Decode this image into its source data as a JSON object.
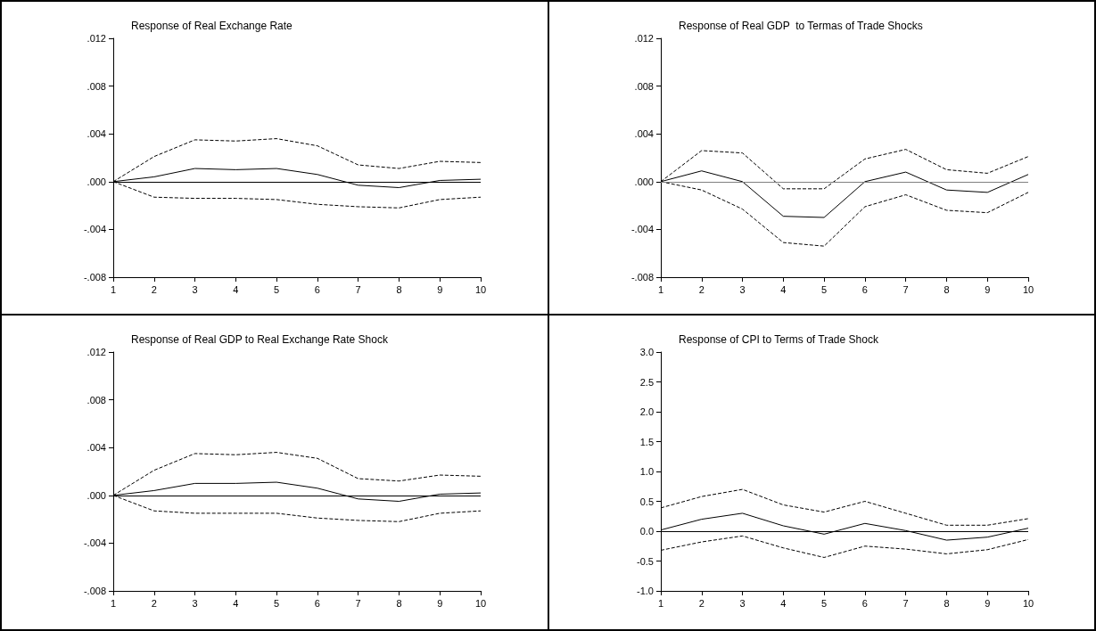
{
  "chart_data": [
    {
      "type": "line",
      "title": "Response of Real Exchange Rate",
      "x": [
        1,
        2,
        3,
        4,
        5,
        6,
        7,
        8,
        9,
        10
      ],
      "xlim": [
        1,
        10
      ],
      "xticks": [
        1,
        2,
        3,
        4,
        5,
        6,
        7,
        8,
        9,
        10
      ],
      "ylim": [
        -0.008,
        0.012
      ],
      "yticks": [
        {
          "value": -0.008,
          "label": "-.008"
        },
        {
          "value": -0.004,
          "label": "-.004"
        },
        {
          "value": 0,
          "label": ".000"
        },
        {
          "value": 0.004,
          "label": ".004"
        },
        {
          "value": 0.008,
          "label": ".008"
        },
        {
          "value": 0.012,
          "label": ".012"
        }
      ],
      "grid": false,
      "marker": "none",
      "ref_lines": [
        {
          "axis": "y",
          "value": 0,
          "color": "#000000",
          "line_style": "solid"
        }
      ],
      "series": [
        {
          "color": "#000000",
          "line_style": "solid",
          "values": [
            0,
            0.0004,
            0.0011,
            0.001,
            0.0011,
            0.0006,
            -0.0003,
            -0.0005,
            0.0001,
            0.0002
          ]
        },
        {
          "color": "#000000",
          "line_style": "dashed",
          "values": [
            0,
            0.0021,
            0.0035,
            0.0034,
            0.0036,
            0.003,
            0.0014,
            0.0011,
            0.0017,
            0.0016
          ]
        },
        {
          "color": "#000000",
          "line_style": "dashed",
          "values": [
            0,
            -0.0013,
            -0.0014,
            -0.0014,
            -0.0015,
            -0.0019,
            -0.0021,
            -0.0022,
            -0.0015,
            -0.0013
          ]
        }
      ]
    },
    {
      "type": "line",
      "title": "Response of Real GDP  to Termas of Trade Shocks",
      "x": [
        1,
        2,
        3,
        4,
        5,
        6,
        7,
        8,
        9,
        10
      ],
      "xlim": [
        1,
        10
      ],
      "xticks": [
        1,
        2,
        3,
        4,
        5,
        6,
        7,
        8,
        9,
        10
      ],
      "ylim": [
        -0.008,
        0.012
      ],
      "yticks": [
        {
          "value": -0.008,
          "label": "-.008"
        },
        {
          "value": -0.004,
          "label": "-.004"
        },
        {
          "value": 0,
          "label": ".000"
        },
        {
          "value": 0.004,
          "label": ".004"
        },
        {
          "value": 0.008,
          "label": ".008"
        },
        {
          "value": 0.012,
          "label": ".012"
        }
      ],
      "grid": false,
      "marker": "none",
      "ref_lines": [
        {
          "axis": "y",
          "value": 0,
          "color": "#808080",
          "line_style": "solid"
        }
      ],
      "series": [
        {
          "color": "#000000",
          "line_style": "solid",
          "values": [
            0,
            0.0009,
            0,
            -0.0029,
            -0.003,
            0,
            0.0008,
            -0.0007,
            -0.0009,
            0.0006
          ]
        },
        {
          "color": "#000000",
          "line_style": "dashed",
          "values": [
            0,
            0.0026,
            0.0024,
            -0.0006,
            -0.0006,
            0.0019,
            0.0027,
            0.001,
            0.0007,
            0.0021
          ]
        },
        {
          "color": "#000000",
          "line_style": "dashed",
          "values": [
            0,
            -0.0007,
            -0.0023,
            -0.0051,
            -0.0054,
            -0.0021,
            -0.0011,
            -0.0024,
            -0.0026,
            -0.0009
          ]
        }
      ]
    },
    {
      "type": "line",
      "title": "Response of Real GDP to Real Exchange Rate Shock",
      "x": [
        1,
        2,
        3,
        4,
        5,
        6,
        7,
        8,
        9,
        10
      ],
      "xlim": [
        1,
        10
      ],
      "xticks": [
        1,
        2,
        3,
        4,
        5,
        6,
        7,
        8,
        9,
        10
      ],
      "ylim": [
        -0.008,
        0.012
      ],
      "yticks": [
        {
          "value": -0.008,
          "label": "-.008"
        },
        {
          "value": -0.004,
          "label": "-.004"
        },
        {
          "value": 0,
          "label": ".000"
        },
        {
          "value": 0.004,
          "label": ".004"
        },
        {
          "value": 0.008,
          "label": ".008"
        },
        {
          "value": 0.012,
          "label": ".012"
        }
      ],
      "grid": false,
      "marker": "none",
      "ref_lines": [
        {
          "axis": "y",
          "value": 0,
          "color": "#000000",
          "line_style": "solid"
        }
      ],
      "series": [
        {
          "color": "#000000",
          "line_style": "solid",
          "values": [
            0,
            0.0004,
            0.001,
            0.001,
            0.0011,
            0.0006,
            -0.0003,
            -0.0005,
            0.0001,
            0.0002
          ]
        },
        {
          "color": "#000000",
          "line_style": "dashed",
          "values": [
            0,
            0.0021,
            0.0035,
            0.0034,
            0.0036,
            0.0031,
            0.0014,
            0.0012,
            0.0017,
            0.0016
          ]
        },
        {
          "color": "#000000",
          "line_style": "dashed",
          "values": [
            0,
            -0.0013,
            -0.0015,
            -0.0015,
            -0.0015,
            -0.0019,
            -0.0021,
            -0.0022,
            -0.0015,
            -0.0013
          ]
        }
      ]
    },
    {
      "type": "line",
      "title": "Response of CPI to Terms of Trade Shock",
      "x": [
        1,
        2,
        3,
        4,
        5,
        6,
        7,
        8,
        9,
        10
      ],
      "xlim": [
        1,
        10
      ],
      "xticks": [
        1,
        2,
        3,
        4,
        5,
        6,
        7,
        8,
        9,
        10
      ],
      "ylim": [
        -1,
        3
      ],
      "yticks": [
        {
          "value": -1,
          "label": "-1.0"
        },
        {
          "value": -0.5,
          "label": "-0.5"
        },
        {
          "value": 0,
          "label": "0.0"
        },
        {
          "value": 0.5,
          "label": "0.5"
        },
        {
          "value": 1,
          "label": "1.0"
        },
        {
          "value": 1.5,
          "label": "1.5"
        },
        {
          "value": 2,
          "label": "2.0"
        },
        {
          "value": 2.5,
          "label": "2.5"
        },
        {
          "value": 3,
          "label": "3.0"
        }
      ],
      "grid": false,
      "marker": "none",
      "ref_lines": [
        {
          "axis": "y",
          "value": 0,
          "color": "#000000",
          "line_style": "solid"
        }
      ],
      "series": [
        {
          "color": "#000000",
          "line_style": "solid",
          "values": [
            0.02,
            0.2,
            0.3,
            0.09,
            -0.05,
            0.13,
            0.01,
            -0.15,
            -0.1,
            0.05
          ]
        },
        {
          "color": "#000000",
          "line_style": "dashed",
          "values": [
            0.39,
            0.58,
            0.7,
            0.44,
            0.32,
            0.5,
            0.3,
            0.1,
            0.1,
            0.21
          ]
        },
        {
          "color": "#000000",
          "line_style": "dashed",
          "values": [
            -0.32,
            -0.18,
            -0.08,
            -0.28,
            -0.44,
            -0.25,
            -0.3,
            -0.38,
            -0.31,
            -0.14
          ]
        }
      ]
    }
  ]
}
